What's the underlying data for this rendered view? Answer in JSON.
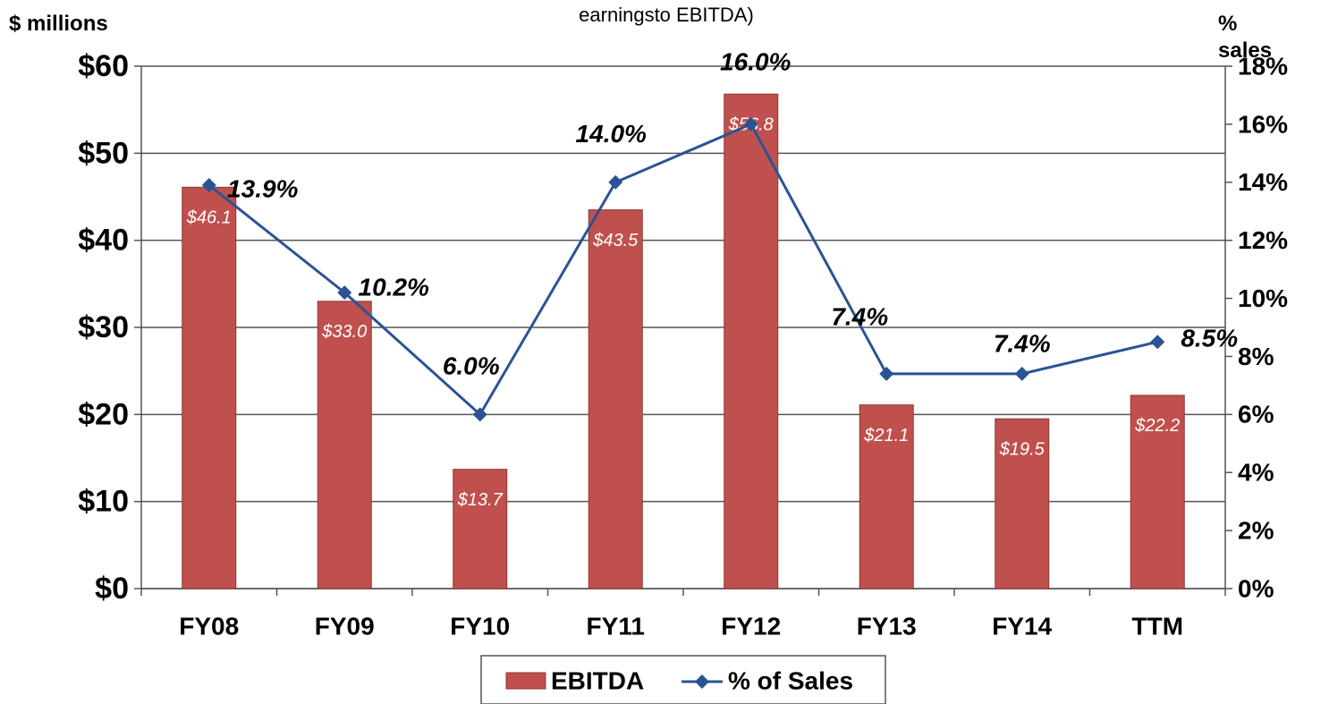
{
  "chart_data": {
    "type": "bar_line",
    "title": "earningsto EBITDA)",
    "y_label": "$ millions",
    "y2_label": "% sales",
    "categories": [
      "FY08",
      "FY09",
      "FY10",
      "FY11",
      "FY12",
      "FY13",
      "FY14",
      "TTM"
    ],
    "series": [
      {
        "name": "EBITDA",
        "type": "bar",
        "color": "#c0504d",
        "values": [
          46.1,
          33.0,
          13.7,
          43.5,
          56.8,
          21.1,
          19.5,
          22.2
        ],
        "value_labels": [
          "$46.1",
          "$33.0",
          "$13.7",
          "$43.5",
          "$56.8",
          "$21.1",
          "$19.5",
          "$22.2"
        ]
      },
      {
        "name": "% of Sales",
        "type": "line",
        "axis": "y2",
        "color": "#2a5394",
        "values": [
          13.9,
          10.2,
          6.0,
          14.0,
          16.0,
          7.4,
          7.4,
          8.5
        ],
        "value_labels": [
          "13.9%",
          "10.2%",
          "6.0%",
          "14.0%",
          "16.0%",
          "7.4%",
          "7.4%",
          "8.5%"
        ]
      }
    ],
    "ylim": [
      0,
      60
    ],
    "yticks": [
      {
        "value": 0,
        "label": "$0"
      },
      {
        "value": 10,
        "label": "$10"
      },
      {
        "value": 20,
        "label": "$20"
      },
      {
        "value": 30,
        "label": "$30"
      },
      {
        "value": 40,
        "label": "$40"
      },
      {
        "value": 50,
        "label": "$50"
      },
      {
        "value": 60,
        "label": "$60"
      }
    ],
    "y2lim": [
      0,
      18
    ],
    "y2ticks": [
      {
        "value": 0,
        "label": "0%"
      },
      {
        "value": 2,
        "label": "2%"
      },
      {
        "value": 4,
        "label": "4%"
      },
      {
        "value": 6,
        "label": "6%"
      },
      {
        "value": 8,
        "label": "8%"
      },
      {
        "value": 10,
        "label": "10%"
      },
      {
        "value": 12,
        "label": "12%"
      },
      {
        "value": 14,
        "label": "14%"
      },
      {
        "value": 16,
        "label": "16%"
      },
      {
        "value": 18,
        "label": "18%"
      }
    ],
    "grid": true,
    "legend": "bottom"
  }
}
